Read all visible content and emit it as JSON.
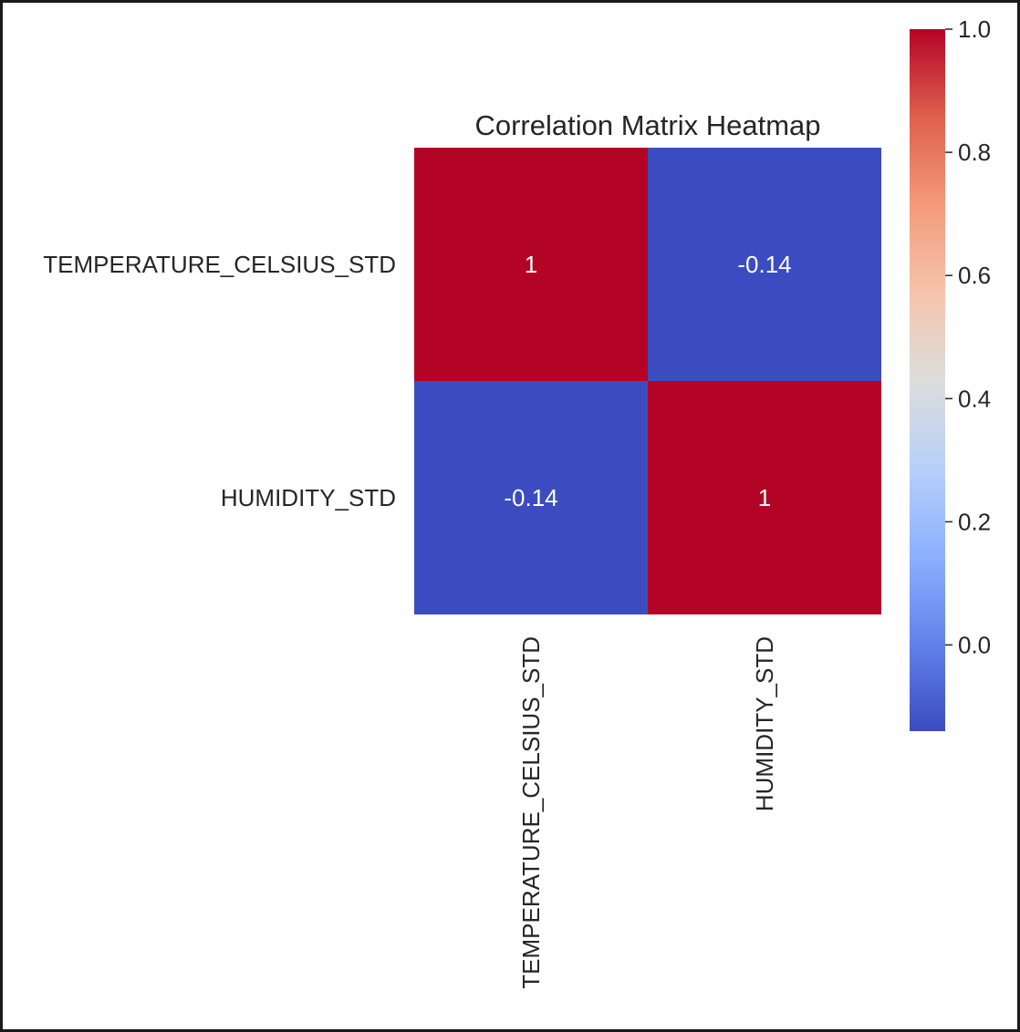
{
  "chart_data": {
    "type": "heatmap",
    "title": "Correlation Matrix Heatmap",
    "row_labels": [
      "TEMPERATURE_CELSIUS_STD",
      "HUMIDITY_STD"
    ],
    "col_labels": [
      "TEMPERATURE_CELSIUS_STD",
      "HUMIDITY_STD"
    ],
    "values": [
      [
        1,
        -0.14
      ],
      [
        -0.14,
        1
      ]
    ],
    "annotations": [
      [
        "1",
        "-0.14"
      ],
      [
        "-0.14",
        "1"
      ]
    ],
    "colormap": "coolwarm",
    "colorbar": {
      "range": [
        -0.14,
        1.0
      ],
      "ticks": [
        0.0,
        0.2,
        0.4,
        0.6,
        0.8,
        1.0
      ],
      "tick_labels": [
        "0.0",
        "0.2",
        "0.4",
        "0.6",
        "0.8",
        "1.0"
      ],
      "placement": "right"
    },
    "colors": {
      "high": "#b40426",
      "low": "#3b4cc0",
      "mid": "#dddddd"
    }
  }
}
